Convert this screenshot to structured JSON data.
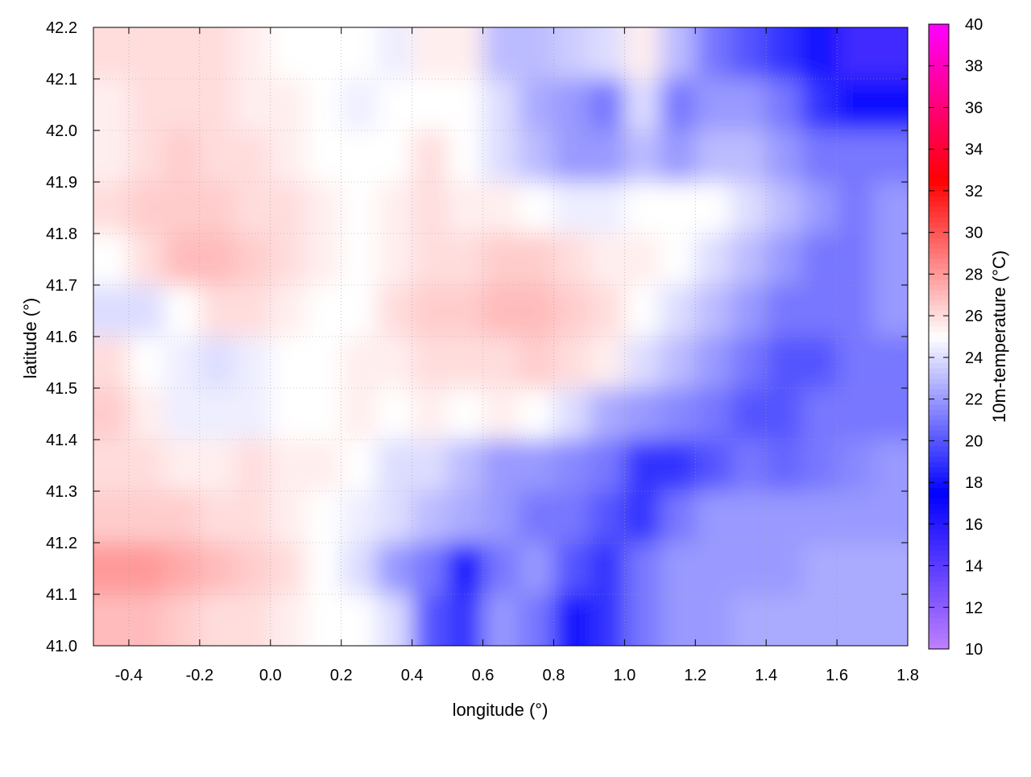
{
  "chart_data": {
    "type": "heatmap",
    "title": "",
    "xlabel": "longitude (°)",
    "ylabel": "latitude (°)",
    "colorbar_label": "10m-temperature (°C)",
    "xlim": [
      -0.5,
      1.8
    ],
    "ylim": [
      41.0,
      42.2
    ],
    "clim": [
      10,
      40
    ],
    "xticks": [
      "-0.4",
      "-0.2",
      "0.0",
      "0.2",
      "0.4",
      "0.6",
      "0.8",
      "1.0",
      "1.2",
      "1.4",
      "1.6",
      "1.8"
    ],
    "yticks": [
      "41.0",
      "41.1",
      "41.2",
      "41.3",
      "41.4",
      "41.5",
      "41.6",
      "41.7",
      "41.8",
      "41.9",
      "42.0",
      "42.1",
      "42.2"
    ],
    "cticks": [
      "10",
      "12",
      "14",
      "16",
      "18",
      "20",
      "22",
      "24",
      "26",
      "28",
      "30",
      "32",
      "34",
      "36",
      "38",
      "40"
    ],
    "grid": true,
    "colormap": [
      {
        "value": 10,
        "color": "#c080ff"
      },
      {
        "value": 17.5,
        "color": "#0000ff"
      },
      {
        "value": 25,
        "color": "#ffffff"
      },
      {
        "value": 32.5,
        "color": "#ff0000"
      },
      {
        "value": 40,
        "color": "#ff00ff"
      }
    ],
    "grid_lon": [
      -0.45,
      -0.35,
      -0.25,
      -0.15,
      -0.05,
      0.05,
      0.15,
      0.25,
      0.35,
      0.45,
      0.55,
      0.65,
      0.75,
      0.85,
      0.95,
      1.05,
      1.15,
      1.25,
      1.35,
      1.45,
      1.55,
      1.65,
      1.75
    ],
    "grid_lat": [
      42.15,
      42.05,
      41.95,
      41.85,
      41.75,
      41.65,
      41.55,
      41.45,
      41.35,
      41.25,
      41.15,
      41.05
    ],
    "temperature": [
      [
        26,
        26,
        26,
        26,
        25.5,
        25,
        25,
        25,
        24.5,
        25.5,
        25.5,
        23,
        23,
        23.5,
        24,
        25.5,
        23,
        21,
        20,
        19,
        17,
        15,
        15
      ],
      [
        25.5,
        26,
        26,
        26,
        25.5,
        25.5,
        25,
        24.5,
        25,
        25,
        25,
        24,
        22.5,
        22,
        21,
        24,
        21,
        22,
        22,
        21,
        19,
        18,
        18
      ],
      [
        25.5,
        26,
        26.5,
        26,
        26,
        25.5,
        25,
        25,
        25,
        26,
        25,
        24,
        23,
        22,
        22,
        23,
        22,
        23,
        23,
        22,
        21,
        21,
        21
      ],
      [
        26,
        26.5,
        26.5,
        26.5,
        26,
        26,
        25.5,
        25,
        25.5,
        26,
        25.5,
        25.5,
        25,
        24.5,
        24.5,
        25,
        25,
        25,
        24,
        23,
        22,
        21,
        22
      ],
      [
        25,
        26,
        27,
        27,
        26.5,
        26,
        25.5,
        25,
        25.5,
        26,
        26,
        26.5,
        26.5,
        26,
        25.5,
        25.5,
        25,
        24,
        23,
        22,
        21,
        21,
        22
      ],
      [
        24,
        24,
        25,
        26,
        26,
        25.5,
        25,
        25,
        26,
        26.5,
        26.5,
        27,
        27,
        26.5,
        26,
        25,
        24,
        23,
        22,
        21,
        21,
        21,
        22
      ],
      [
        26,
        25,
        24.5,
        24,
        24.5,
        25,
        25,
        25.5,
        25.5,
        26,
        26,
        26,
        26.5,
        26,
        25.5,
        24,
        23,
        22,
        21,
        20,
        20,
        21,
        21
      ],
      [
        26.5,
        25.5,
        24.5,
        24.5,
        24.5,
        25,
        25,
        25.5,
        25,
        25.5,
        25,
        25.5,
        25,
        24,
        22.5,
        22,
        21.5,
        21,
        20,
        20,
        21,
        21,
        21
      ],
      [
        26,
        26,
        25.5,
        25.5,
        26,
        25.5,
        25.5,
        25,
        24,
        24,
        23,
        22,
        22,
        21.5,
        21,
        19,
        19,
        20,
        21,
        20.5,
        21,
        21.5,
        22
      ],
      [
        26.5,
        26.5,
        26.5,
        26,
        26,
        25.5,
        25,
        24.5,
        24,
        23,
        22.5,
        22,
        21,
        21,
        20,
        19,
        21,
        22,
        22,
        22,
        22,
        22,
        22
      ],
      [
        28,
        28,
        27.5,
        27,
        26.5,
        26,
        25,
        24,
        22,
        21,
        18,
        21,
        22,
        20,
        19,
        21,
        22,
        22,
        22,
        22,
        22.5,
        22.5,
        22.5
      ],
      [
        27,
        27,
        26.5,
        26,
        26,
        25.5,
        25,
        25,
        24,
        20,
        19,
        22,
        21,
        18,
        19,
        21,
        22,
        22,
        22.5,
        22.5,
        22.5,
        22.5,
        22.5
      ]
    ]
  }
}
